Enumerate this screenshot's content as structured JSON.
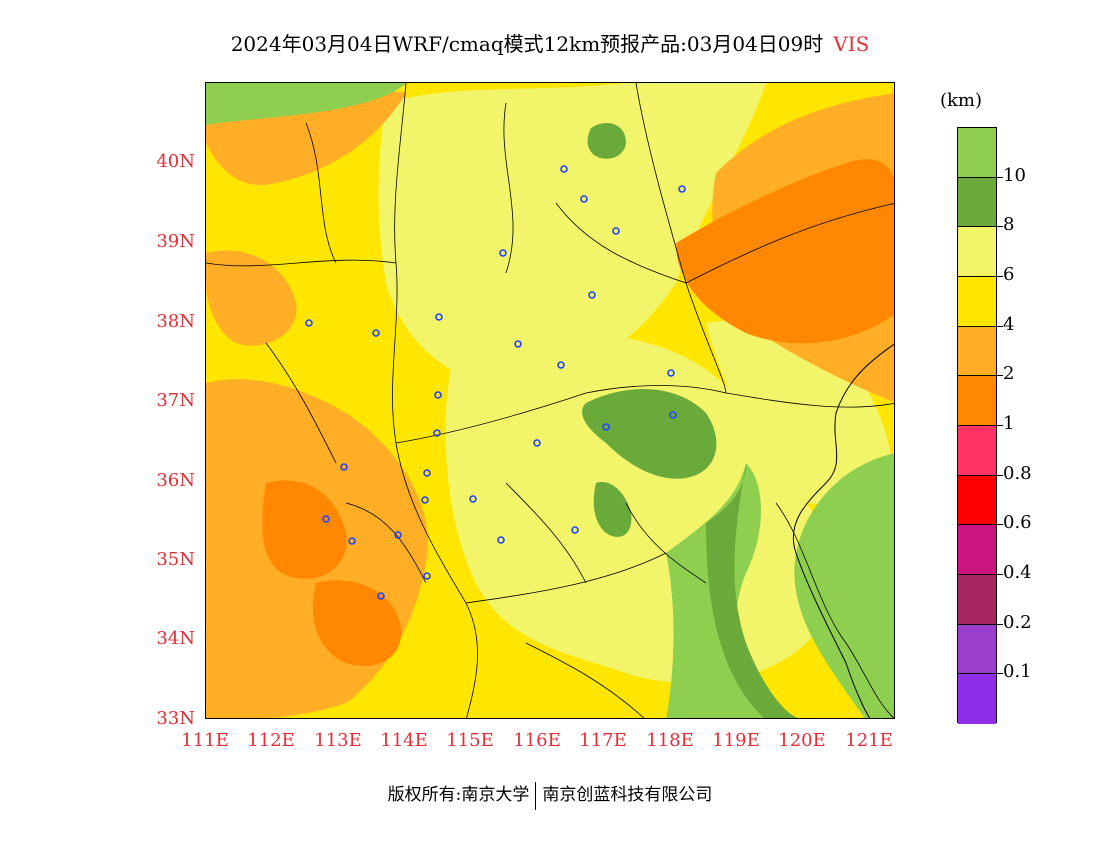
{
  "title": {
    "main": "2024年03月04日WRF/cmaq模式12km预报产品:03月04日09时",
    "variable": "VIS"
  },
  "lat_labels": [
    "40N",
    "39N",
    "38N",
    "37N",
    "36N",
    "35N",
    "34N",
    "33N"
  ],
  "lon_labels": [
    "111E",
    "112E",
    "113E",
    "114E",
    "115E",
    "116E",
    "117E",
    "118E",
    "119E",
    "120E",
    "121E"
  ],
  "colorbar": {
    "unit": "(km)",
    "labels": [
      "10",
      "8",
      "6",
      "4",
      "2",
      "1",
      "0.8",
      "0.6",
      "0.4",
      "0.2",
      "0.1"
    ],
    "colors": [
      "#8fcf4f",
      "#6aaa3a",
      "#f2f56a",
      "#ffe600",
      "#ffae25",
      "#ff8800",
      "#ff3366",
      "#ff0000",
      "#cc1480",
      "#a62860",
      "#9a3fcc",
      "#8e2ee6"
    ]
  },
  "map": {
    "extent": {
      "lon": [
        111,
        121.4
      ],
      "lat": [
        33,
        41
      ]
    },
    "city_marker_color": "#2244ff"
  },
  "footer": {
    "left": "版权所有:南京大学",
    "right": "南京创蓝科技有限公司"
  }
}
